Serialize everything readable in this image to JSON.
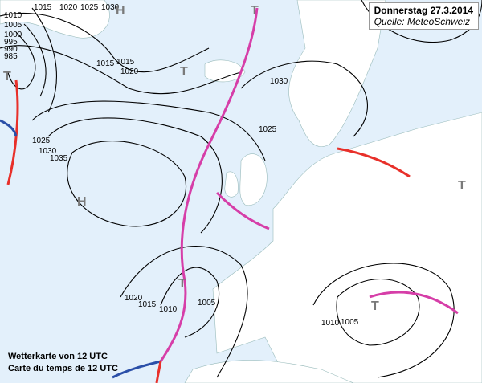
{
  "header": {
    "title": "Donnerstag 27.3.2014",
    "source": "Quelle: MeteoSchweiz"
  },
  "caption": {
    "line1": "Wetterkarte von 12 UTC",
    "line2": "Carte du temps de 12 UTC"
  },
  "colors": {
    "sea": "#e3f0fb",
    "land": "#ffffff",
    "isobar": "#000000",
    "occluded_front": "#d63ea8",
    "cold_front": "#2a4fa8",
    "warm_front": "#e8302a",
    "pressure_center": "#7a7a7a"
  },
  "isobar_labels": [
    "1015",
    "1020",
    "1025",
    "1030",
    "1010",
    "1005",
    "1000",
    "995",
    "990",
    "985",
    "1015",
    "1020",
    "1025",
    "1030",
    "1035",
    "1030",
    "1025",
    "1020",
    "1015",
    "1010",
    "1005",
    "1010",
    "1005",
    "1015"
  ],
  "pressure_centers": [
    {
      "label": "H",
      "type": "high"
    },
    {
      "label": "H",
      "type": "high"
    },
    {
      "label": "T",
      "type": "low"
    },
    {
      "label": "T",
      "type": "low"
    },
    {
      "label": "T",
      "type": "low"
    },
    {
      "label": "T",
      "type": "low"
    },
    {
      "label": "T",
      "type": "low"
    },
    {
      "label": "T",
      "type": "low"
    }
  ]
}
